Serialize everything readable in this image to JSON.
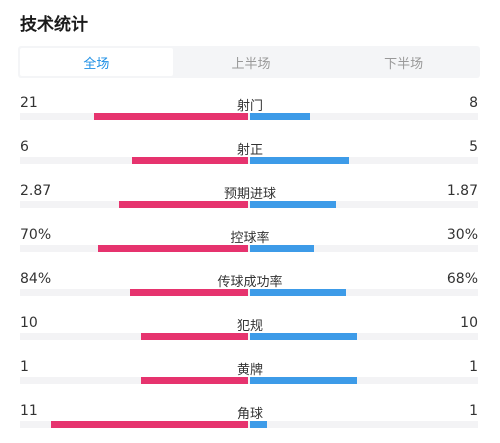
{
  "header": {
    "title": "技术统计"
  },
  "tabs": [
    {
      "label": "全场",
      "active": true
    },
    {
      "label": "上半场",
      "active": false
    },
    {
      "label": "下半场",
      "active": false
    }
  ],
  "colors": {
    "home": "#e6336e",
    "away": "#3d9be8",
    "tab_active": "#1e8fe5"
  },
  "stats": [
    {
      "label": "射门",
      "home": "21",
      "away": "8",
      "home_fraction": 0.72,
      "away_fraction": 0.28
    },
    {
      "label": "射正",
      "home": "6",
      "away": "5",
      "home_fraction": 0.54,
      "away_fraction": 0.46
    },
    {
      "label": "预期进球",
      "home": "2.87",
      "away": "1.87",
      "home_fraction": 0.6,
      "away_fraction": 0.4
    },
    {
      "label": "控球率",
      "home": "70%",
      "away": "30%",
      "home_fraction": 0.7,
      "away_fraction": 0.3
    },
    {
      "label": "传球成功率",
      "home": "84%",
      "away": "68%",
      "home_fraction": 0.55,
      "away_fraction": 0.45
    },
    {
      "label": "犯规",
      "home": "10",
      "away": "10",
      "home_fraction": 0.5,
      "away_fraction": 0.5
    },
    {
      "label": "黄牌",
      "home": "1",
      "away": "1",
      "home_fraction": 0.5,
      "away_fraction": 0.5
    },
    {
      "label": "角球",
      "home": "11",
      "away": "1",
      "home_fraction": 0.92,
      "away_fraction": 0.08
    }
  ]
}
